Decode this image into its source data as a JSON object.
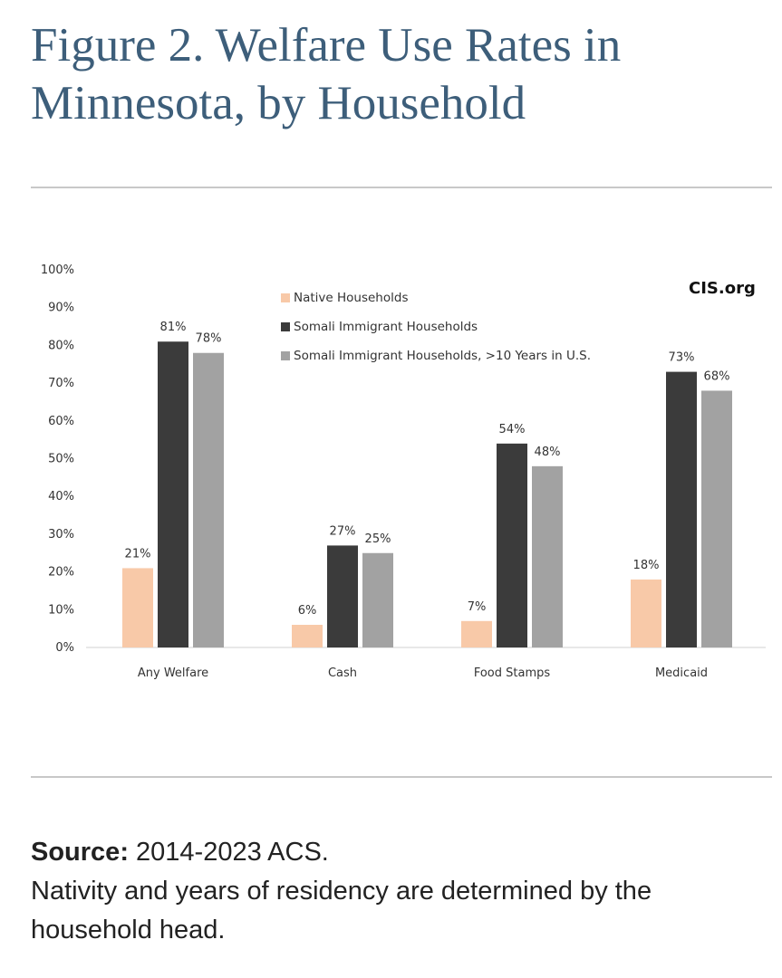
{
  "title": "Figure 2. Welfare Use Rates in Minnesota, by Household",
  "watermark": "CIS.org",
  "source": {
    "label": "Source:",
    "text": " 2014-2023 ACS.",
    "note": "Nativity and years of residency are determined by the household head."
  },
  "chart_data": {
    "type": "bar",
    "categories": [
      "Any Welfare",
      "Cash",
      "Food Stamps",
      "Medicaid"
    ],
    "series": [
      {
        "name": "Native Households",
        "color": "#f8c9a8",
        "values": [
          21,
          6,
          7,
          18
        ]
      },
      {
        "name": "Somali Immigrant Households",
        "color": "#3b3b3b",
        "values": [
          81,
          27,
          54,
          73
        ]
      },
      {
        "name": "Somali Immigrant Households, >10 Years in U.S.",
        "color": "#a2a2a2",
        "values": [
          78,
          25,
          48,
          68
        ]
      }
    ],
    "value_suffix": "%",
    "ylim": [
      0,
      100
    ],
    "yticks": [
      "0%",
      "10%",
      "20%",
      "30%",
      "40%",
      "50%",
      "60%",
      "70%",
      "80%",
      "90%",
      "100%"
    ],
    "legend_position": "top-center",
    "grid": false
  }
}
